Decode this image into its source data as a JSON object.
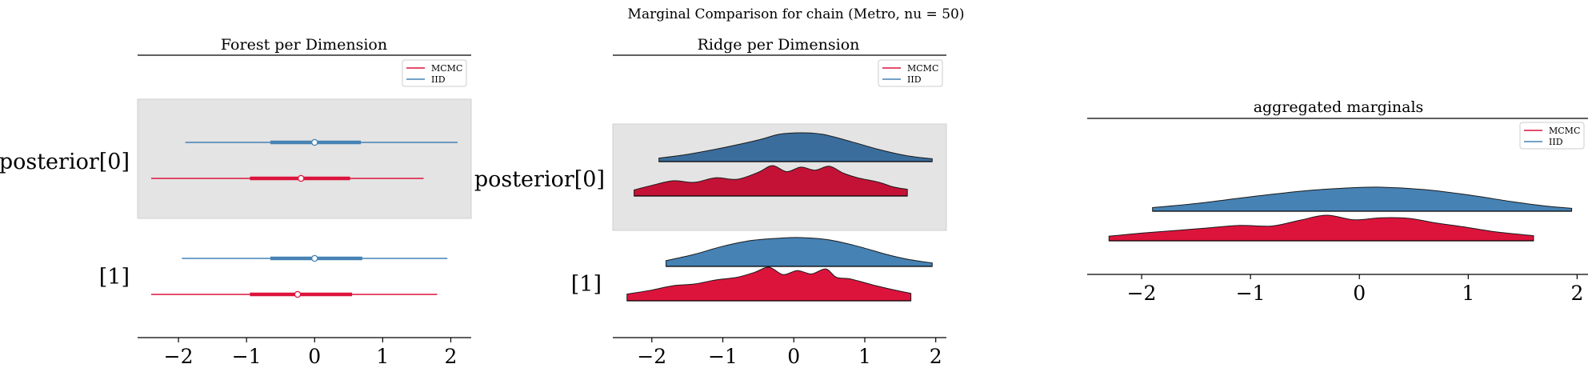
{
  "figure_title": "Marginal Comparison for chain (Metro, nu = 50)",
  "colors": {
    "mcmc": "#dc143c",
    "iid": "#4682b4",
    "iid_dark": "#3a6d9c",
    "mcmc_dark": "#c41236",
    "band": "#e4e4e4"
  },
  "legend": {
    "mcmc": "MCMC",
    "iid": "IID"
  },
  "panels": [
    {
      "title": "Forest per Dimension",
      "labels": [
        "posterior[0]",
        "[1]"
      ],
      "ticks": [
        "−2",
        "−1",
        "0",
        "1",
        "2"
      ]
    },
    {
      "title": "Ridge per Dimension",
      "labels": [
        "posterior[0]",
        "[1]"
      ],
      "ticks": [
        "−2",
        "−1",
        "0",
        "1",
        "2"
      ]
    },
    {
      "title": "aggregated marginals",
      "ticks": [
        "−2",
        "−1",
        "0",
        "1",
        "2"
      ]
    }
  ],
  "chart_data": [
    {
      "type": "forest",
      "title": "Forest per Dimension",
      "xlim": [
        -2.6,
        2.3
      ],
      "series": [
        {
          "name": "IID",
          "variable": "posterior[0]",
          "hdi_low": -1.9,
          "hdi_high": 2.1,
          "iqr": [
            -0.65,
            0.68
          ],
          "median": 0.0
        },
        {
          "name": "MCMC",
          "variable": "posterior[0]",
          "hdi_low": -2.4,
          "hdi_high": 1.6,
          "iqr": [
            -0.95,
            0.52
          ],
          "median": -0.2
        },
        {
          "name": "IID",
          "variable": "[1]",
          "hdi_low": -1.95,
          "hdi_high": 1.95,
          "iqr": [
            -0.65,
            0.7
          ],
          "median": 0.0
        },
        {
          "name": "MCMC",
          "variable": "[1]",
          "hdi_low": -2.4,
          "hdi_high": 1.8,
          "iqr": [
            -0.95,
            0.55
          ],
          "median": -0.25
        }
      ]
    },
    {
      "type": "ridge",
      "title": "Ridge per Dimension",
      "xlim": [
        -2.55,
        2.15
      ],
      "series": [
        {
          "name": "IID",
          "variable": "posterior[0]",
          "x_start": -1.9,
          "x_end": 1.95,
          "x": [
            -1.9,
            -1.5,
            -1.0,
            -0.5,
            -0.2,
            0.1,
            0.4,
            0.8,
            1.2,
            1.6,
            1.95
          ],
          "density": [
            0.12,
            0.25,
            0.48,
            0.75,
            0.95,
            1.0,
            0.95,
            0.7,
            0.42,
            0.2,
            0.1
          ]
        },
        {
          "name": "MCMC",
          "variable": "posterior[0]",
          "x_start": -2.25,
          "x_end": 1.6,
          "x": [
            -2.25,
            -2.0,
            -1.7,
            -1.4,
            -1.1,
            -0.8,
            -0.5,
            -0.3,
            -0.1,
            0.1,
            0.3,
            0.5,
            0.7,
            0.9,
            1.2,
            1.4,
            1.6
          ],
          "density": [
            0.2,
            0.35,
            0.5,
            0.45,
            0.6,
            0.55,
            0.78,
            1.0,
            0.8,
            0.95,
            0.85,
            0.98,
            0.75,
            0.6,
            0.45,
            0.3,
            0.22
          ]
        },
        {
          "name": "IID",
          "variable": "[1]",
          "x_start": -1.8,
          "x_end": 1.95,
          "x": [
            -1.8,
            -1.4,
            -1.0,
            -0.6,
            -0.2,
            0.1,
            0.5,
            0.9,
            1.3,
            1.6,
            1.95
          ],
          "density": [
            0.2,
            0.42,
            0.7,
            0.9,
            0.98,
            1.0,
            0.92,
            0.7,
            0.42,
            0.25,
            0.12
          ]
        },
        {
          "name": "MCMC",
          "variable": "[1]",
          "x_start": -2.35,
          "x_end": 1.65,
          "x": [
            -2.35,
            -2.0,
            -1.7,
            -1.4,
            -1.1,
            -0.8,
            -0.55,
            -0.35,
            -0.15,
            0.05,
            0.25,
            0.45,
            0.6,
            0.8,
            1.1,
            1.4,
            1.65
          ],
          "density": [
            0.2,
            0.32,
            0.45,
            0.5,
            0.62,
            0.7,
            0.85,
            1.0,
            0.78,
            0.9,
            0.8,
            0.95,
            0.7,
            0.65,
            0.48,
            0.33,
            0.22
          ]
        }
      ]
    },
    {
      "type": "ridge",
      "title": "aggregated marginals",
      "xlim": [
        -2.5,
        2.1
      ],
      "series": [
        {
          "name": "IID",
          "x_start": -1.9,
          "x_end": 1.95,
          "x": [
            -1.9,
            -1.5,
            -1.0,
            -0.5,
            -0.1,
            0.2,
            0.6,
            1.0,
            1.4,
            1.7,
            1.95
          ],
          "density": [
            0.15,
            0.32,
            0.6,
            0.85,
            0.97,
            1.0,
            0.9,
            0.68,
            0.4,
            0.22,
            0.12
          ]
        },
        {
          "name": "MCMC",
          "x_start": -2.3,
          "x_end": 1.6,
          "x": [
            -2.3,
            -2.0,
            -1.7,
            -1.4,
            -1.1,
            -0.8,
            -0.55,
            -0.3,
            -0.05,
            0.2,
            0.45,
            0.7,
            0.95,
            1.25,
            1.6
          ],
          "density": [
            0.18,
            0.3,
            0.4,
            0.5,
            0.6,
            0.58,
            0.8,
            1.0,
            0.82,
            0.9,
            0.88,
            0.7,
            0.55,
            0.35,
            0.2
          ]
        }
      ]
    }
  ]
}
